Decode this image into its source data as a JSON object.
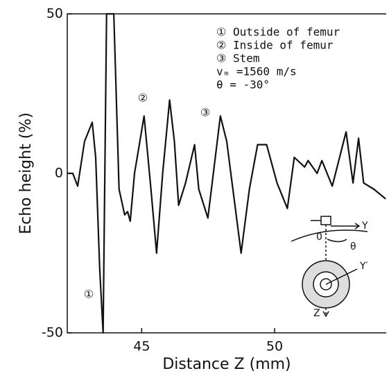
{
  "chart_data": {
    "type": "line",
    "x_label": "Distance  Z  (mm)",
    "y_label": "Echo height  (%)",
    "xlim": [
      42.2,
      54.2
    ],
    "ylim": [
      -50,
      50
    ],
    "xticks": [
      45,
      50
    ],
    "yticks": [
      -50,
      0,
      50
    ],
    "color": "#111111",
    "legend_lines": [
      "① Outside of femur",
      "② Inside of femur",
      "③ Stem",
      "vₘ =1560 m/s",
      "θ = -30°"
    ],
    "peak_markers": [
      "①",
      "②",
      "③"
    ],
    "inset_labels": [
      "Y",
      "0",
      "θ",
      "Y′",
      "Z"
    ],
    "x": [
      42.2,
      42.41,
      42.59,
      42.85,
      43.14,
      43.27,
      43.42,
      43.55,
      43.68,
      43.95,
      44.15,
      44.36,
      44.47,
      44.57,
      44.73,
      45.09,
      45.35,
      45.56,
      45.79,
      46.05,
      46.23,
      46.39,
      46.65,
      46.99,
      47.15,
      47.49,
      47.96,
      48.2,
      48.74,
      49.05,
      49.36,
      49.7,
      50.09,
      50.48,
      50.74,
      51.13,
      51.26,
      51.6,
      51.78,
      52.17,
      52.69,
      52.95,
      53.16,
      53.35,
      53.74,
      54.18
    ],
    "values": [
      0,
      0,
      -4,
      10,
      16,
      5,
      -30,
      -50,
      50,
      50,
      -5,
      -13,
      -12,
      -15,
      0,
      18,
      -5,
      -25,
      0,
      23,
      10,
      -10,
      -3,
      9,
      -5,
      -14,
      18,
      10,
      -25,
      -5,
      9,
      9,
      -3,
      -11,
      5,
      2,
      4,
      0,
      4,
      -4,
      13,
      -3,
      11,
      -3,
      -5,
      -8
    ]
  }
}
